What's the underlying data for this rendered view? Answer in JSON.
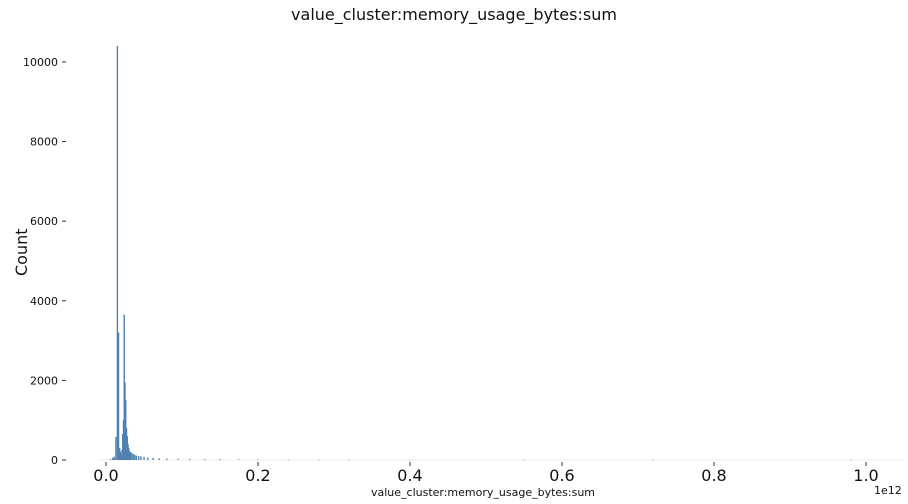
{
  "chart_data": {
    "type": "bar",
    "title": "value_cluster:memory_usage_bytes:sum",
    "xlabel": "value_cluster:memory_usage_bytes:sum",
    "ylabel": "Count",
    "x_offset_label": "1e12",
    "xlim": [
      -0.05,
      1.05
    ],
    "ylim": [
      0,
      10450
    ],
    "xticks": [
      0.0,
      0.2,
      0.4,
      0.6,
      0.8,
      1.0
    ],
    "xtick_labels": [
      "0.0",
      "0.2",
      "0.4",
      "0.6",
      "0.8",
      "1.0"
    ],
    "yticks": [
      0,
      2000,
      4000,
      6000,
      8000,
      10000
    ],
    "ytick_labels": [
      "0",
      "2000",
      "4000",
      "6000",
      "8000",
      "10000"
    ],
    "grid": false,
    "bar_color": "#4f81b0",
    "series": [
      {
        "x": [
          0.006,
          0.009,
          0.011,
          0.013,
          0.015,
          0.0165,
          0.018,
          0.019,
          0.02,
          0.021,
          0.022,
          0.023,
          0.024,
          0.025,
          0.026,
          0.027,
          0.028,
          0.029,
          0.03,
          0.031,
          0.032,
          0.034,
          0.036,
          0.038,
          0.04,
          0.043,
          0.046,
          0.05,
          0.055,
          0.062,
          0.07,
          0.08,
          0.095,
          0.11,
          0.13,
          0.15,
          0.175,
          0.2,
          0.24,
          0.28,
          0.32,
          0.4,
          0.55,
          0.72,
          0.98
        ],
        "values": [
          20,
          60,
          80,
          580,
          10400,
          3200,
          300,
          200,
          120,
          250,
          650,
          1000,
          3650,
          1950,
          1500,
          800,
          600,
          400,
          300,
          220,
          200,
          180,
          150,
          130,
          110,
          100,
          90,
          80,
          60,
          50,
          40,
          35,
          30,
          25,
          20,
          20,
          15,
          15,
          10,
          10,
          8,
          5,
          3,
          2,
          2
        ]
      }
    ]
  }
}
